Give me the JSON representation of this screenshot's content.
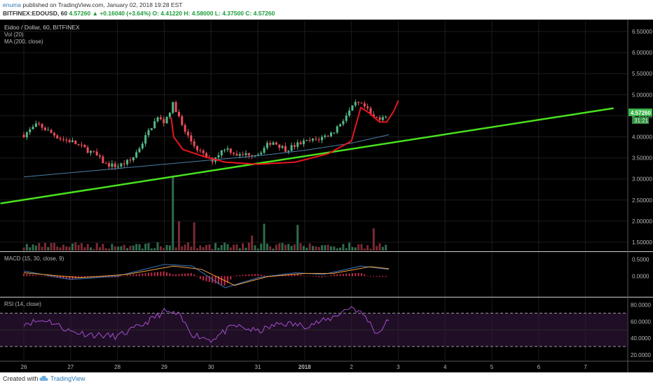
{
  "header": {
    "author": "enuma",
    "published": "published on TradingView.com, January 02, 2018 19:28 EST",
    "symbol": "BITFINEX:EDOUSD, 60",
    "change": "4.57260 ▲ +0.16040 (+3.64%)",
    "ohlc": "O: 4.41220 H: 4.58000 L: 4.37500 C: 4.57260"
  },
  "footer": {
    "created": "Created with",
    "brand": "TradingView"
  },
  "chart_data": [
    {
      "type": "candlestick",
      "title": "Eidoo / Dollar, 60, BITFINEX",
      "indicators": [
        "Vol (20)",
        "MA (200, close)"
      ],
      "x_ticks": [
        "26",
        "27",
        "28",
        "29",
        "30",
        "31",
        "2018",
        "2",
        "3",
        "4",
        "5",
        "6",
        "7"
      ],
      "y_ticks": [
        "6.50000",
        "6.00000",
        "5.50000",
        "5.00000",
        "4.50000",
        "4.00000",
        "3.50000",
        "3.00000",
        "2.50000",
        "2.00000",
        "1.50000"
      ],
      "ylim": [
        1.3,
        6.75
      ],
      "last_price": "4.57260",
      "countdown": "31:21",
      "price_path": [
        [
          0,
          4.05
        ],
        [
          0.3,
          4.3
        ],
        [
          0.5,
          4.15
        ],
        [
          0.8,
          3.95
        ],
        [
          1.0,
          3.9
        ],
        [
          1.3,
          3.72
        ],
        [
          1.5,
          3.6
        ],
        [
          1.75,
          3.35
        ],
        [
          2.0,
          3.3
        ],
        [
          2.3,
          3.45
        ],
        [
          2.5,
          3.8
        ],
        [
          2.7,
          4.2
        ],
        [
          2.85,
          4.45
        ],
        [
          3.0,
          4.35
        ],
        [
          3.2,
          4.8
        ],
        [
          3.4,
          4.2
        ],
        [
          3.6,
          3.85
        ],
        [
          3.8,
          3.6
        ],
        [
          4.0,
          3.42
        ],
        [
          4.3,
          3.75
        ],
        [
          4.6,
          3.55
        ],
        [
          4.8,
          3.6
        ],
        [
          5.0,
          3.6
        ],
        [
          5.3,
          3.9
        ],
        [
          5.6,
          3.7
        ],
        [
          5.9,
          3.85
        ],
        [
          6.3,
          3.95
        ],
        [
          6.6,
          4.1
        ],
        [
          6.85,
          4.45
        ],
        [
          7.1,
          4.8
        ],
        [
          7.3,
          4.7
        ],
        [
          7.45,
          4.45
        ],
        [
          7.6,
          4.45
        ],
        [
          7.8,
          4.57
        ]
      ],
      "ma_path": [
        [
          0,
          3.05
        ],
        [
          1.5,
          3.2
        ],
        [
          3.0,
          3.35
        ],
        [
          4.0,
          3.45
        ],
        [
          5.0,
          3.55
        ],
        [
          6.0,
          3.68
        ],
        [
          7.0,
          3.85
        ],
        [
          7.8,
          4.05
        ]
      ],
      "trendline": [
        [
          -0.5,
          2.42
        ],
        [
          12.6,
          4.68
        ]
      ],
      "colors": {
        "up": "#53b987",
        "down": "#eb4d5c",
        "trendline": "#48e11e",
        "annotation": "#e8161d",
        "ma": "#4a7fa8",
        "last": "#3ab54a"
      },
      "volume_ylim": [
        0,
        1.4
      ]
    },
    {
      "type": "line",
      "title": "MACD (15, 30, close, 9)",
      "y_ticks": [
        "0.5000",
        "0.0000"
      ],
      "ylim": [
        -0.6,
        0.7
      ],
      "macd_path": [
        [
          0,
          0.15
        ],
        [
          1.0,
          -0.1
        ],
        [
          2.0,
          0.0
        ],
        [
          3.0,
          0.35
        ],
        [
          3.6,
          0.3
        ],
        [
          4.3,
          -0.35
        ],
        [
          5.0,
          -0.05
        ],
        [
          5.8,
          0.1
        ],
        [
          6.4,
          0.05
        ],
        [
          7.2,
          0.3
        ],
        [
          7.8,
          0.2
        ]
      ],
      "signal_path": [
        [
          0,
          0.1
        ],
        [
          1.2,
          -0.05
        ],
        [
          2.2,
          0.05
        ],
        [
          3.2,
          0.3
        ],
        [
          3.8,
          0.2
        ],
        [
          4.5,
          -0.28
        ],
        [
          5.2,
          -0.02
        ],
        [
          6.0,
          0.08
        ],
        [
          6.6,
          0.08
        ],
        [
          7.4,
          0.28
        ],
        [
          7.8,
          0.22
        ]
      ],
      "colors": {
        "macd": "#3b78c2",
        "signal": "#f6a23e",
        "hist": "#c8284a"
      }
    },
    {
      "type": "line",
      "title": "RSI (14, close)",
      "y_ticks": [
        "80.0000",
        "60.0000",
        "40.0000",
        "20.0000"
      ],
      "ylim": [
        14,
        88
      ],
      "bands": [
        30,
        70
      ],
      "rsi_path": [
        [
          0,
          58
        ],
        [
          0.5,
          62
        ],
        [
          1.0,
          48
        ],
        [
          1.5,
          44
        ],
        [
          2.0,
          42
        ],
        [
          2.5,
          55
        ],
        [
          3.0,
          72
        ],
        [
          3.3,
          68
        ],
        [
          3.6,
          45
        ],
        [
          4.0,
          38
        ],
        [
          4.5,
          55
        ],
        [
          5.0,
          48
        ],
        [
          5.5,
          58
        ],
        [
          6.0,
          55
        ],
        [
          6.5,
          62
        ],
        [
          7.0,
          78
        ],
        [
          7.3,
          66
        ],
        [
          7.55,
          45
        ],
        [
          7.8,
          62
        ]
      ],
      "colors": {
        "rsi": "#a34fcf",
        "fill": "#3a1a45"
      }
    }
  ]
}
